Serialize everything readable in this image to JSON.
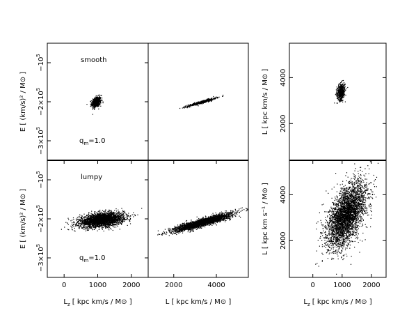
{
  "chart_data": [
    {
      "type": "scatter",
      "panel": "smooth-E-vs-Lz",
      "annotation": "smooth",
      "qm_label": "q",
      "qm_sub": "m",
      "qm_value": "=1.0",
      "x_range": [
        -500,
        2500
      ],
      "y_range": [
        -350000,
        -50000
      ],
      "yticks": [
        {
          "value": -100000,
          "base": "−10",
          "exp": "5"
        },
        {
          "value": -200000,
          "base": "−2×10",
          "exp": "5"
        },
        {
          "value": -300000,
          "base": "−3×10",
          "exp": "5"
        }
      ],
      "ylabel": "E  [ (km/s)² / M⊙ ]",
      "cloud": {
        "cx": 950,
        "cy": -200000,
        "sx": 70,
        "sy": 7000,
        "rho": 0.3,
        "n": 500
      }
    },
    {
      "type": "scatter",
      "panel": "smooth-E-vs-L",
      "x_range": [
        800,
        5500
      ],
      "y_range": [
        -350000,
        -50000
      ],
      "cloud": {
        "cx": 3300,
        "cy": -200000,
        "sx": 330,
        "sy": 5500,
        "rho": 0.95,
        "n": 500
      }
    },
    {
      "type": "scatter",
      "panel": "smooth-L-vs-Lz",
      "x_range": [
        -800,
        2500
      ],
      "y_range": [
        400,
        5500
      ],
      "yticks": [
        {
          "value": 2000,
          "label": "2000"
        },
        {
          "value": 4000,
          "label": "4000"
        }
      ],
      "ylabel": "L  [ kpc km/s / M⊙ ]",
      "cloud": {
        "cx": 950,
        "cy": 3400,
        "sx": 70,
        "sy": 180,
        "rho": 0.2,
        "n": 500
      }
    },
    {
      "type": "scatter",
      "panel": "lumpy-E-vs-Lz",
      "annotation": "lumpy",
      "qm_label": "q",
      "qm_sub": "m",
      "qm_value": "=1.0",
      "x_range": [
        -500,
        2500
      ],
      "y_range": [
        -350000,
        -50000
      ],
      "xticks": [
        {
          "value": 0,
          "label": "0"
        },
        {
          "value": 1000,
          "label": "1000"
        },
        {
          "value": 2000,
          "label": "2000"
        }
      ],
      "yticks": [
        {
          "value": -100000,
          "base": "−10",
          "exp": "5"
        },
        {
          "value": -200000,
          "base": "−2×10",
          "exp": "5"
        },
        {
          "value": -300000,
          "base": "−3×10",
          "exp": "5"
        }
      ],
      "xlabel": "L",
      "xlabel_sub": "z",
      "xlabel_rest": "  [ kpc km/s / M⊙ ]",
      "ylabel": "E  [ (km/s)² / M⊙ ]",
      "cloud": {
        "cx": 1100,
        "cy": -202000,
        "sx": 330,
        "sy": 9000,
        "rho": 0.35,
        "n": 2800
      }
    },
    {
      "type": "scatter",
      "panel": "lumpy-E-vs-L",
      "x_range": [
        800,
        5500
      ],
      "y_range": [
        -350000,
        -50000
      ],
      "xticks": [
        {
          "value": 2000,
          "label": "2000"
        },
        {
          "value": 4000,
          "label": "4000"
        }
      ],
      "xlabel": "L  [ kpc km/s / M⊙ ]",
      "cloud": {
        "cx": 3350,
        "cy": -208000,
        "sx": 650,
        "sy": 11000,
        "rho": 0.9,
        "n": 2800
      }
    },
    {
      "type": "scatter",
      "panel": "lumpy-L-vs-Lz",
      "x_range": [
        -800,
        2500
      ],
      "y_range": [
        400,
        5500
      ],
      "xticks": [
        {
          "value": 0,
          "label": "0"
        },
        {
          "value": 1000,
          "label": "1000"
        },
        {
          "value": 2000,
          "label": "2000"
        }
      ],
      "yticks": [
        {
          "value": 2000,
          "label": "2000"
        },
        {
          "value": 4000,
          "label": "4000"
        }
      ],
      "xlabel": "L",
      "xlabel_sub": "z",
      "xlabel_rest": "  [ kpc km/s / M⊙ ]",
      "ylabel": "L  [ kpc km s⁻¹ / M⊙ ]",
      "cloud": {
        "cx": 1150,
        "cy": 3150,
        "sx": 330,
        "sy": 700,
        "rho": 0.55,
        "n": 3500
      }
    }
  ]
}
